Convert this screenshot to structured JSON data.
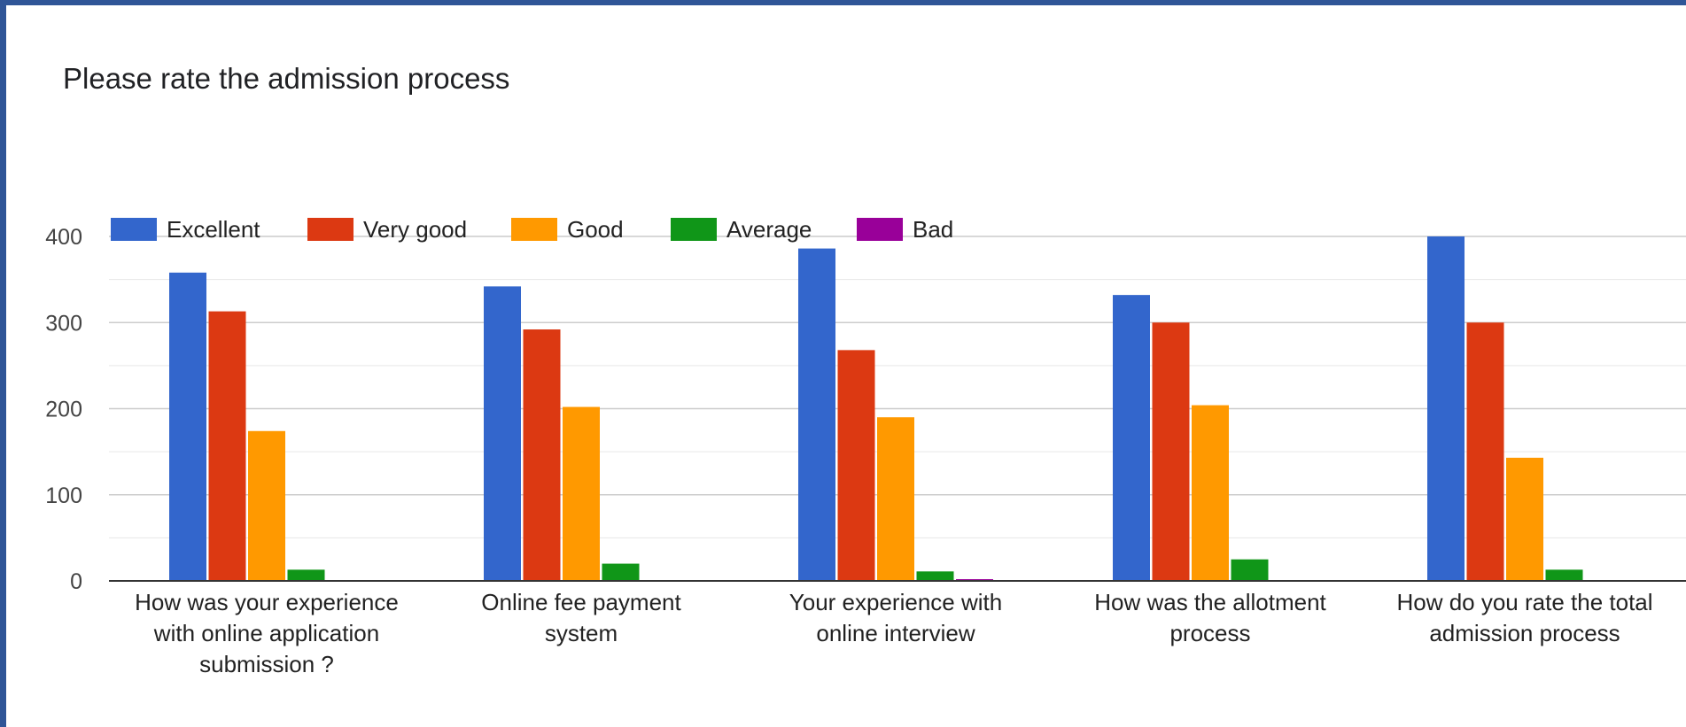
{
  "chart_data": {
    "type": "bar",
    "title": "Please rate the admission process",
    "categories": [
      [
        "How was your experience",
        "with online application",
        "submission ?"
      ],
      [
        "Online fee payment",
        "system"
      ],
      [
        "Your experience with",
        "online interview"
      ],
      [
        "How was the allotment",
        "process"
      ],
      [
        "How do you rate the total",
        "admission process"
      ]
    ],
    "series": [
      {
        "name": "Excellent",
        "color": "#3366cc",
        "values": [
          358,
          342,
          386,
          332,
          400
        ]
      },
      {
        "name": "Very good",
        "color": "#dc3912",
        "values": [
          313,
          292,
          268,
          300,
          300
        ]
      },
      {
        "name": "Good",
        "color": "#ff9900",
        "values": [
          174,
          202,
          190,
          204,
          143
        ]
      },
      {
        "name": "Average",
        "color": "#109618",
        "values": [
          13,
          20,
          11,
          25,
          13
        ]
      },
      {
        "name": "Bad",
        "color": "#990099",
        "values": [
          0,
          1,
          2,
          0,
          0
        ]
      }
    ],
    "ylim": [
      0,
      400
    ],
    "yticks": [
      "0",
      "100",
      "200",
      "300",
      "400"
    ],
    "xlabel": "",
    "ylabel": "",
    "legend_position": "top-left",
    "grid": true
  }
}
